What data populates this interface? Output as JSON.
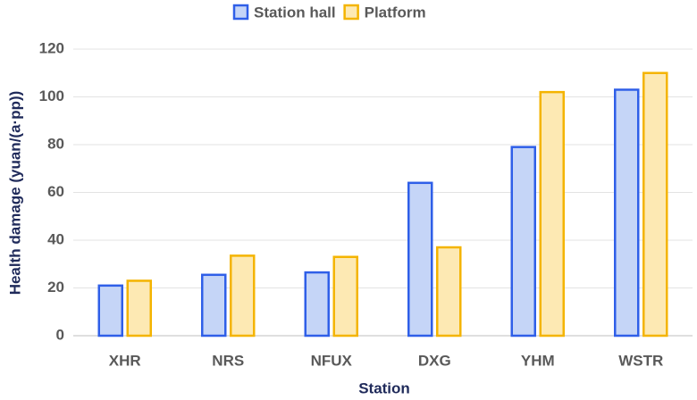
{
  "chart_data": {
    "type": "bar",
    "x_label": "Station",
    "y_label": "Health damage (yuan/(a·pp))",
    "categories": [
      "XHR",
      "NRS",
      "NFUX",
      "DXG",
      "YHM",
      "WSTR"
    ],
    "series": [
      {
        "name": "Station hall",
        "color": "#2f5fe8",
        "fill": "#c5d5f7",
        "values": [
          21,
          25.5,
          26.5,
          64,
          79,
          103
        ]
      },
      {
        "name": "Platform",
        "color": "#f4b400",
        "fill": "#fde9b3",
        "values": [
          23,
          33.5,
          33,
          37,
          102,
          110
        ]
      }
    ],
    "ylim": [
      0,
      120
    ],
    "yticks": [
      0,
      20,
      40,
      60,
      80,
      100,
      120
    ],
    "grid": true,
    "legend": "top"
  }
}
